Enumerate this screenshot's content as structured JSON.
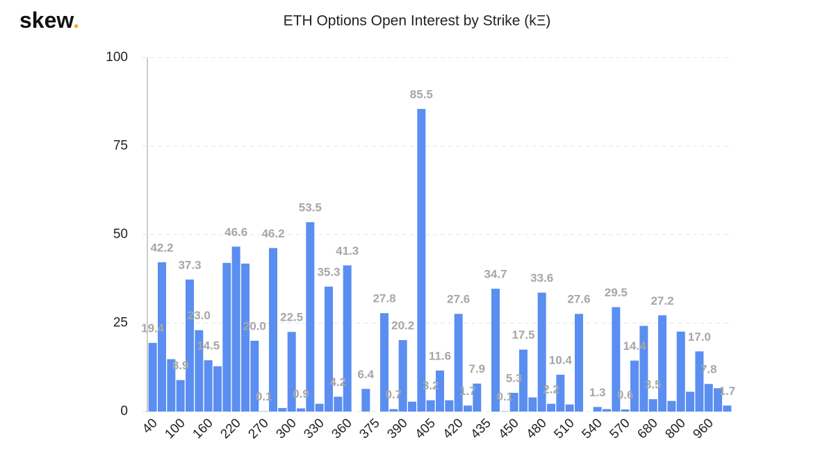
{
  "brand": {
    "name": "skew",
    "dot": "."
  },
  "chart_data": {
    "type": "bar",
    "title": "ETH Options Open Interest by Strike (kΞ)",
    "categories": [
      "40",
      null,
      null,
      "100",
      null,
      null,
      "160",
      null,
      null,
      "220",
      null,
      null,
      "270",
      null,
      null,
      "300",
      null,
      null,
      "330",
      null,
      null,
      "360",
      null,
      null,
      "375",
      null,
      null,
      "390",
      null,
      null,
      "405",
      null,
      null,
      "420",
      null,
      null,
      "435",
      null,
      null,
      "450",
      null,
      null,
      "480",
      null,
      null,
      "510",
      null,
      null,
      "540",
      null,
      null,
      "570",
      null,
      null,
      "680",
      null,
      null,
      "800",
      null,
      null,
      "960",
      null,
      null
    ],
    "values": [
      19.4,
      42.2,
      14.8,
      8.9,
      37.3,
      23.0,
      14.5,
      12.8,
      42.0,
      46.6,
      41.8,
      20.0,
      0.1,
      46.2,
      1.0,
      22.5,
      0.9,
      53.5,
      2.2,
      35.3,
      4.2,
      41.3,
      0,
      6.4,
      0,
      27.8,
      0.7,
      20.2,
      2.8,
      85.5,
      3.2,
      11.6,
      3.2,
      27.6,
      1.7,
      7.9,
      0,
      34.7,
      0.1,
      5.3,
      17.5,
      4.0,
      33.6,
      2.2,
      10.4,
      2.0,
      27.6,
      0,
      1.3,
      0.7,
      29.5,
      0.6,
      14.4,
      24.2,
      3.5,
      27.2,
      3.0,
      22.6,
      5.6,
      17.0,
      7.8,
      6.6,
      1.7
    ],
    "value_labels": [
      "19.4",
      "42.2",
      null,
      "8.9",
      "37.3",
      "23.0",
      "14.5",
      null,
      null,
      "46.6",
      null,
      "20.0",
      "0.1",
      "46.2",
      null,
      "22.5",
      "0.9",
      "53.5",
      null,
      "35.3",
      "4.2",
      "41.3",
      null,
      "6.4",
      null,
      "27.8",
      "0.7",
      "20.2",
      null,
      "85.5",
      "3.2",
      "11.6",
      null,
      "27.6",
      "1.7",
      "7.9",
      null,
      "34.7",
      "0.1",
      "5.3",
      "17.5",
      null,
      "33.6",
      "2.2",
      "10.4",
      null,
      "27.6",
      null,
      "1.3",
      null,
      "29.5",
      "0.6",
      "14.4",
      null,
      "3.5",
      "27.2",
      null,
      null,
      null,
      "17.0",
      "7.8",
      null,
      "1.7"
    ],
    "color": "#5a8ef0",
    "ylim": [
      0,
      100
    ],
    "yticks": [
      0,
      25,
      50,
      75,
      100
    ],
    "grid": true
  }
}
